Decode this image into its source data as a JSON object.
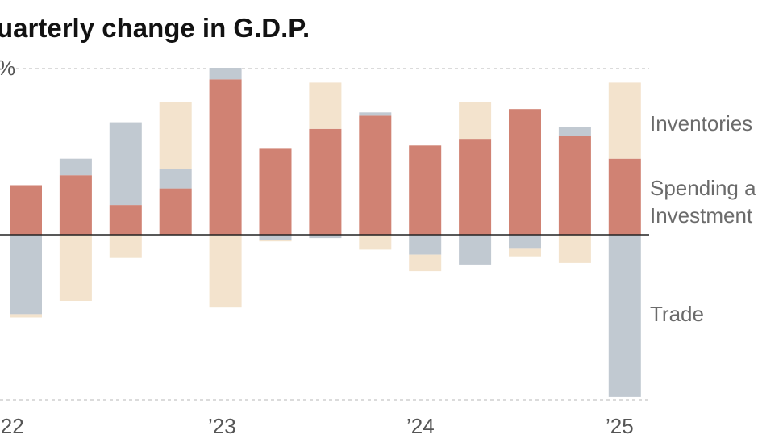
{
  "chart_data": {
    "type": "bar",
    "stacked": true,
    "title": "uarterly change in G.D.P.",
    "y_unit_label": "%",
    "x_tick_labels": [
      "’22",
      "’23",
      "’24",
      "’25"
    ],
    "ylim": [
      -5,
      5
    ],
    "gridlines": [
      5,
      -5
    ],
    "categories": [
      "Q1 2022",
      "Q2 2022",
      "Q3 2022",
      "Q4 2022",
      "Q1 2023",
      "Q2 2023",
      "Q3 2023",
      "Q4 2023",
      "Q1 2024",
      "Q2 2024",
      "Q3 2024",
      "Q4 2024",
      "Q1 2025"
    ],
    "series": [
      {
        "name": "Spending a",
        "color": "#d08273",
        "values": [
          1.5,
          1.8,
          0.9,
          1.4,
          4.7,
          2.6,
          3.2,
          3.6,
          2.7,
          2.9,
          3.8,
          3.0,
          2.3
        ]
      },
      {
        "name": "Trade",
        "color": "#c1c9d1",
        "values": [
          -2.4,
          0.5,
          2.5,
          0.6,
          0.35,
          -0.15,
          -0.1,
          0.1,
          -0.6,
          -0.9,
          -0.4,
          0.25,
          -4.9
        ]
      },
      {
        "name": "Inventories",
        "color": "#f3e3cd",
        "values": [
          -0.1,
          -2.0,
          -0.7,
          2.0,
          -2.2,
          -0.05,
          1.4,
          -0.45,
          -0.5,
          1.1,
          -0.25,
          -0.85,
          2.3
        ]
      }
    ],
    "series_labels": {
      "inventories": "Inventories",
      "spending_line1": "Spending a",
      "spending_line2": "Investment",
      "trade": "Trade"
    },
    "colors": {
      "spending": "#d08273",
      "trade": "#c1c9d1",
      "inventories": "#f3e3cd",
      "zero_line": "#222222"
    }
  }
}
